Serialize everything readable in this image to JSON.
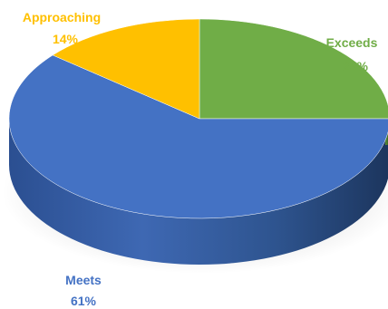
{
  "chart_data": {
    "type": "pie",
    "style": "3d",
    "slices": [
      {
        "name": "Exceeds",
        "value": 25,
        "label": "25%",
        "color": "#70AD47"
      },
      {
        "name": "Meets",
        "value": 61,
        "label": "61%",
        "color": "#4472C4"
      },
      {
        "name": "Approaching",
        "value": 14,
        "label": "14%",
        "color": "#FFC000"
      }
    ],
    "legend": "none"
  }
}
